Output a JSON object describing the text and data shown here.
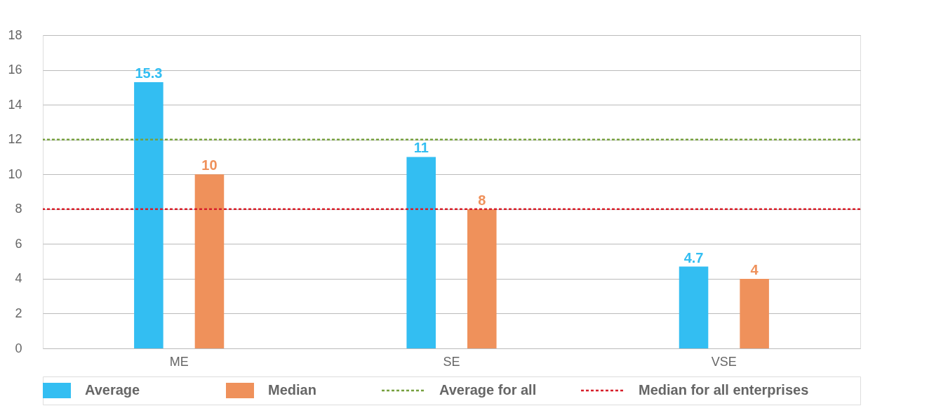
{
  "chart_data": {
    "type": "bar",
    "categories": [
      "ME",
      "SE",
      "VSE"
    ],
    "series": [
      {
        "name": "Average",
        "color": "#33bef2",
        "values": [
          15.3,
          11,
          4.7
        ]
      },
      {
        "name": "Median",
        "color": "#ef915b",
        "values": [
          10,
          8,
          4
        ]
      }
    ],
    "ref_lines": [
      {
        "axis": "y",
        "value": 12,
        "label": "Average for all",
        "color": "#76a03e",
        "line_style": "dotted"
      },
      {
        "axis": "y",
        "value": 8,
        "label": "Median for all enterprises",
        "color": "#d7202b",
        "line_style": "dotted"
      }
    ],
    "ylim": [
      0,
      18
    ],
    "yticks": [
      0,
      2,
      4,
      6,
      8,
      10,
      12,
      14,
      16,
      18
    ],
    "grid": "y",
    "legend": "bottom",
    "data_labels": true
  }
}
